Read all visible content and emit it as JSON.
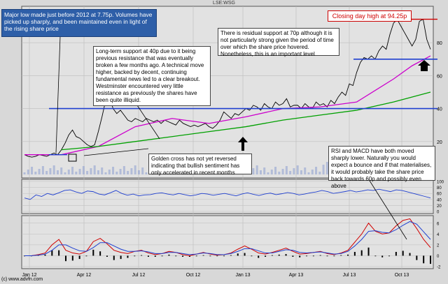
{
  "header": {
    "ticker": "LSE:WSG"
  },
  "copyright": "(c) www.advfn.com",
  "colors": {
    "background": "#d8d8d8",
    "price": "#000000",
    "ma_short": "#cc00cc",
    "ma_long": "#00a000",
    "support": "#1f3fd0",
    "high": "#d00000",
    "rsi": "#1f3fd0",
    "macd": "#d00000",
    "signal": "#1f3fd0",
    "histogram": "#000000"
  },
  "annotations": {
    "major_low": "Major low made just before 2012 at 7.75p. Volumes have picked up sharply, and been maintained even in light of the rising share price",
    "long_term_support": "Long-term support at 40p due to it being previous resistance that was eventually broken a few months ago. A technical move higher, backed by decent, continuing fundamental news led to a clear breakout. Westminster encountered very little resistance as previously the shares have been quite illiquid.",
    "closing_high": "Closing day high at 94.25p",
    "residual_support": "There is residual support at 70p although it is not particularly strong given the period of time over which the share price hovered. Nonetheless, this is an important level",
    "golden_cross": "Golden cross has not yet reversed indicating that bullish sentiment has only accelerated in recent months",
    "rsi_macd": "RSI and MACD have both moved sharply lower. Naturally you would expect a bounce and if that materialises, it would probably take the share price back towards 60p and possibly even above"
  },
  "chart_data": [
    {
      "type": "line",
      "title": "",
      "x_ticks": [
        "Jan 12",
        "Apr 12",
        "Jul 12",
        "Oct 12",
        "Jan 13",
        "Apr 13",
        "Jul 13",
        "Oct 13"
      ],
      "y_ticks": [
        20,
        40,
        60,
        80
      ],
      "ylim": [
        0,
        100
      ],
      "support_levels": [
        40,
        70
      ],
      "high_level": 94.25,
      "series": [
        {
          "key": "price",
          "x": [
            0,
            1,
            2,
            3,
            4,
            5,
            6,
            7,
            8,
            9,
            10,
            11,
            12,
            13,
            14,
            15,
            16,
            17,
            18,
            19,
            20,
            21,
            22,
            23,
            24,
            25,
            26,
            27,
            28,
            29,
            30,
            31,
            32,
            33,
            34,
            35,
            36,
            37,
            38,
            39,
            40,
            41,
            42,
            43,
            44,
            45,
            46,
            47,
            48,
            49,
            50,
            51,
            52,
            53,
            54,
            55,
            56,
            57,
            58,
            59,
            60,
            61,
            62,
            63,
            64,
            65,
            66,
            67,
            68,
            69,
            70,
            71,
            72,
            73,
            74,
            75,
            76,
            77,
            78,
            79,
            80,
            81,
            82,
            83,
            84,
            85,
            86,
            87,
            88,
            89,
            90,
            91,
            92,
            93,
            94,
            95,
            96,
            97,
            98,
            99,
            100,
            101,
            102,
            103,
            104,
            105,
            106,
            107,
            108,
            109,
            110
          ],
          "values": [
            12,
            11,
            10.5,
            11,
            12,
            11.5,
            11,
            12,
            13,
            12,
            15,
            19,
            24,
            27,
            23,
            22,
            20,
            18,
            17,
            18,
            26,
            35,
            45,
            47,
            40,
            37,
            39,
            36,
            33,
            32,
            34,
            33,
            32,
            34,
            33,
            32,
            33,
            31,
            33,
            32,
            31,
            30,
            33,
            31,
            30,
            29,
            30,
            29,
            30,
            31,
            29,
            28,
            30,
            33,
            38,
            36,
            34,
            37,
            36,
            38,
            40,
            39,
            42,
            41,
            39,
            43,
            41,
            40,
            44,
            42,
            43,
            46,
            41,
            42,
            42,
            40,
            43,
            41,
            40,
            44,
            42,
            43,
            41,
            45,
            43,
            47,
            50,
            48,
            55,
            54,
            62,
            68,
            71,
            70,
            72,
            70,
            75,
            78,
            76,
            85,
            92,
            94,
            90,
            86,
            82,
            78,
            82,
            93,
            94.25,
            82,
            76
          ]
        },
        {
          "key": "ma_short",
          "x": [
            0,
            10,
            20,
            30,
            40,
            50,
            60,
            70,
            80,
            90,
            100,
            105,
            110
          ],
          "values": [
            12,
            12,
            17,
            29,
            34,
            31,
            35,
            40,
            41,
            44,
            58,
            66,
            72
          ]
        },
        {
          "key": "ma_long",
          "x": [
            10,
            20,
            30,
            40,
            50,
            60,
            70,
            80,
            90,
            100,
            110
          ],
          "values": [
            15,
            17,
            20,
            23,
            26,
            29,
            33,
            36,
            39,
            44,
            50
          ]
        }
      ]
    },
    {
      "type": "line",
      "title": "",
      "y_ticks": [
        0,
        20,
        40,
        60,
        80,
        100
      ],
      "ylim": [
        0,
        100
      ],
      "series": [
        {
          "key": "rsi",
          "values": [
            45,
            40,
            55,
            50,
            60,
            55,
            62,
            70,
            72,
            65,
            60,
            68,
            66,
            58,
            55,
            62,
            70,
            60,
            54,
            58,
            52,
            55,
            56,
            60,
            62,
            58,
            55,
            60,
            56,
            52,
            55,
            60,
            58,
            54,
            57,
            60,
            56,
            52,
            58,
            62,
            57,
            53,
            58,
            61,
            56,
            59,
            63,
            60,
            55,
            58,
            62,
            65,
            70,
            66,
            60,
            63,
            66,
            70,
            65,
            68,
            72,
            70,
            74,
            70,
            66,
            72,
            70,
            65,
            60,
            55,
            50,
            45
          ]
        }
      ]
    },
    {
      "type": "line",
      "title": "",
      "y_ticks": [
        -2,
        0,
        2,
        4,
        6
      ],
      "ylim": [
        -2,
        7
      ],
      "series": [
        {
          "key": "macd",
          "values": [
            0,
            0,
            0.2,
            0.5,
            2,
            3,
            1,
            0.5,
            0.3,
            0.8,
            2.6,
            3.2,
            2.2,
            1,
            0.6,
            0.4,
            0.8,
            1,
            0.5,
            0.2,
            0.4,
            0.8,
            0.6,
            0.2,
            0,
            0.3,
            0.6,
            0.3,
            0.1,
            0.2,
            0.5,
            1.2,
            1.8,
            1.2,
            0.5,
            0.3,
            0.6,
            1,
            1.4,
            0.8,
            0.3,
            0.4,
            0.6,
            0.8,
            0.4,
            0.2,
            0.5,
            1,
            2.5,
            4,
            6,
            4.5,
            4,
            4.2,
            5.5,
            6.5,
            6.8,
            5,
            3,
            1.5
          ]
        },
        {
          "key": "signal",
          "values": [
            0,
            0,
            0.1,
            0.3,
            1,
            2,
            2,
            1.4,
            0.9,
            0.8,
            1.5,
            2.4,
            2.4,
            1.8,
            1.2,
            0.8,
            0.8,
            0.9,
            0.7,
            0.4,
            0.4,
            0.6,
            0.6,
            0.4,
            0.2,
            0.3,
            0.5,
            0.4,
            0.2,
            0.2,
            0.4,
            0.8,
            1.3,
            1.3,
            0.9,
            0.5,
            0.5,
            0.8,
            1.1,
            1,
            0.6,
            0.5,
            0.6,
            0.7,
            0.5,
            0.3,
            0.4,
            0.8,
            1.8,
            3,
            4.5,
            4.6,
            4.3,
            4.2,
            4.8,
            5.6,
            6.3,
            5.8,
            4.4,
            3
          ]
        }
      ]
    }
  ]
}
